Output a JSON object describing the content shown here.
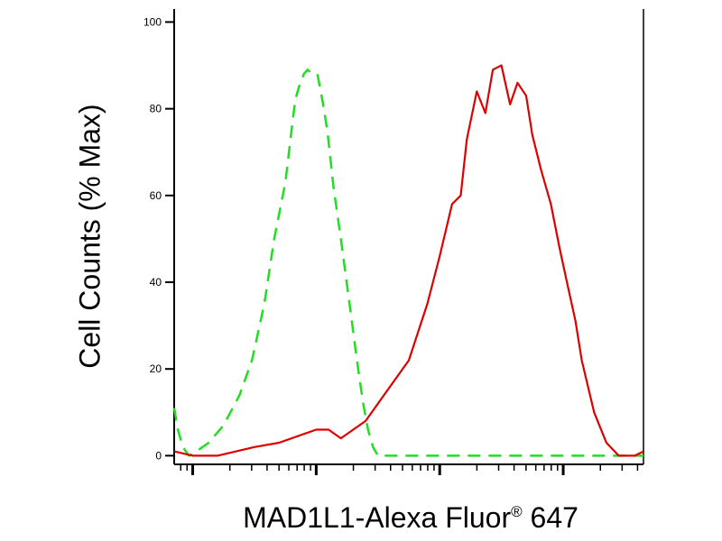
{
  "chart_data": {
    "type": "line",
    "title": "",
    "xlabel": "MAD1L1-Alexa Fluor® 647",
    "xlabel_parts": {
      "main": "MAD1L1-Alexa Fluor",
      "sup": "®",
      "tail": " 647"
    },
    "ylabel": "Cell Counts (% Max)",
    "x_scale": "log",
    "xlim": [
      1.85,
      5.65
    ],
    "ylim": [
      -2,
      103
    ],
    "y_ticks": [
      0,
      20,
      40,
      60,
      80,
      100
    ],
    "y_tick_labels": [
      "0",
      "20",
      "40",
      "60",
      "80",
      "100"
    ],
    "x_major_ticks": [
      2,
      3,
      4,
      5
    ],
    "grid": false,
    "legend": "none",
    "series": [
      {
        "line_style": "dashed",
        "color": "#22dd22",
        "x": [
          1.85,
          1.88,
          1.92,
          1.97,
          2.03,
          2.13,
          2.25,
          2.38,
          2.48,
          2.58,
          2.66,
          2.75,
          2.8,
          2.83,
          2.86,
          2.9,
          2.93,
          2.97,
          3.01,
          3.05,
          3.09,
          3.14,
          3.2,
          3.27,
          3.33,
          3.38,
          3.42,
          3.46,
          3.5,
          3.55,
          3.6,
          3.65,
          5.65
        ],
        "y": [
          11,
          6,
          2,
          0,
          1,
          3,
          7,
          14,
          22,
          35,
          50,
          63,
          75,
          82,
          85,
          88,
          89,
          88,
          88,
          82,
          75,
          62,
          50,
          35,
          22,
          12,
          6,
          2,
          0,
          0,
          0,
          0,
          0
        ]
      },
      {
        "line_style": "solid",
        "color": "#dd0000",
        "x": [
          1.85,
          2.0,
          2.2,
          2.5,
          2.7,
          2.9,
          3.0,
          3.1,
          3.2,
          3.3,
          3.4,
          3.55,
          3.75,
          3.9,
          4.0,
          4.1,
          4.17,
          4.22,
          4.3,
          4.37,
          4.43,
          4.5,
          4.57,
          4.63,
          4.7,
          4.75,
          4.82,
          4.9,
          4.97,
          5.03,
          5.1,
          5.15,
          5.25,
          5.35,
          5.45,
          5.52,
          5.58,
          5.65
        ],
        "y": [
          1,
          0,
          0,
          2,
          3,
          5,
          6,
          6,
          4,
          6,
          8,
          14,
          22,
          35,
          46,
          58,
          60,
          73,
          84,
          79,
          89,
          90,
          81,
          86,
          83,
          74,
          66,
          58,
          48,
          40,
          31,
          22,
          10,
          3,
          0,
          0,
          0,
          1
        ]
      }
    ]
  }
}
